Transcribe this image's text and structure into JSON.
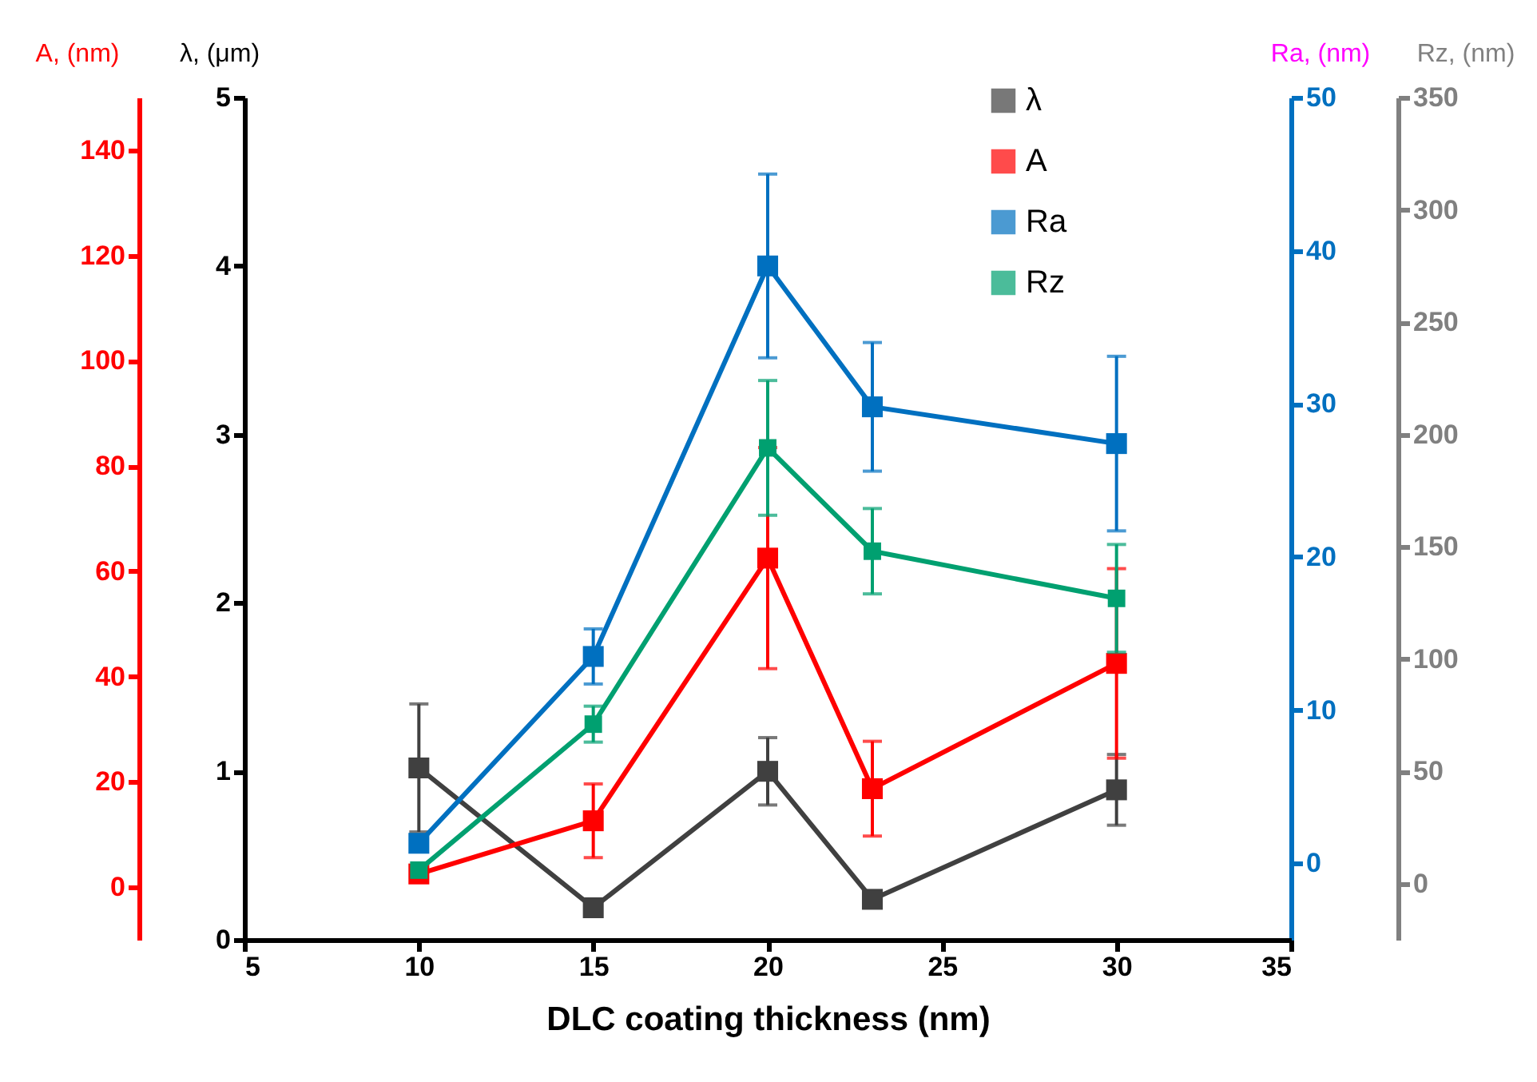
{
  "chart_data": [
    {
      "type": "line",
      "xlabel": "DLC coating thickness (nm)",
      "ylabel": "λ, (μm)",
      "y2label": "A, (nm)",
      "y3label": "Ra, (nm)",
      "x": [
        10,
        15,
        20,
        23,
        30
      ],
      "xlim": [
        5,
        35
      ],
      "xticks": [
        5,
        10,
        15,
        20,
        25,
        30,
        35
      ],
      "ylim": [
        0,
        5
      ],
      "yticks": [
        0,
        1,
        2,
        3,
        4,
        5
      ],
      "y2lim": [
        -10,
        150
      ],
      "y2ticks": [
        0,
        20,
        40,
        60,
        80,
        100,
        120,
        140
      ],
      "y3lim": [
        -5,
        50
      ],
      "y3ticks": [
        0,
        10,
        20,
        30,
        40,
        50
      ],
      "marker": "square",
      "legend": "top right",
      "series": [
        {
          "name": "λ",
          "color": "#404040",
          "values": [
            1.02,
            0.19,
            1.0,
            0.24,
            0.89
          ],
          "errors": [
            0.38,
            null,
            0.2,
            null,
            0.21
          ]
        },
        {
          "name": "A",
          "color": "#ff0000",
          "axis": "y2",
          "values": [
            2.5,
            12.6,
            62.5,
            18.7,
            42.5
          ],
          "errors": [
            null,
            7,
            21,
            9,
            18
          ]
        },
        {
          "name": "Ra",
          "color": "#0070c0",
          "axis": "y3",
          "values": [
            1.3,
            13.5,
            39,
            29.8,
            27.4
          ],
          "errors": [
            null,
            1.8,
            6,
            4.2,
            5.7
          ]
        }
      ]
    },
    {
      "type": "line",
      "ylabel": "Rz, (nm)",
      "x": [
        10,
        15,
        20,
        23,
        30
      ],
      "xlim": [
        5,
        35
      ],
      "xticks": [
        5,
        10,
        15,
        20,
        25,
        30,
        35
      ],
      "ylim": [
        -25,
        350
      ],
      "yticks": [
        0,
        50,
        100,
        150,
        200,
        250,
        300,
        350
      ],
      "tick_labels": "y",
      "marker": "square",
      "legend": "top right",
      "series": [
        {
          "name": "Rz",
          "color": "#00a070",
          "values": [
            6,
            71,
            194,
            148,
            127
          ],
          "errors": [
            null,
            8,
            30,
            19,
            24
          ]
        }
      ]
    }
  ]
}
